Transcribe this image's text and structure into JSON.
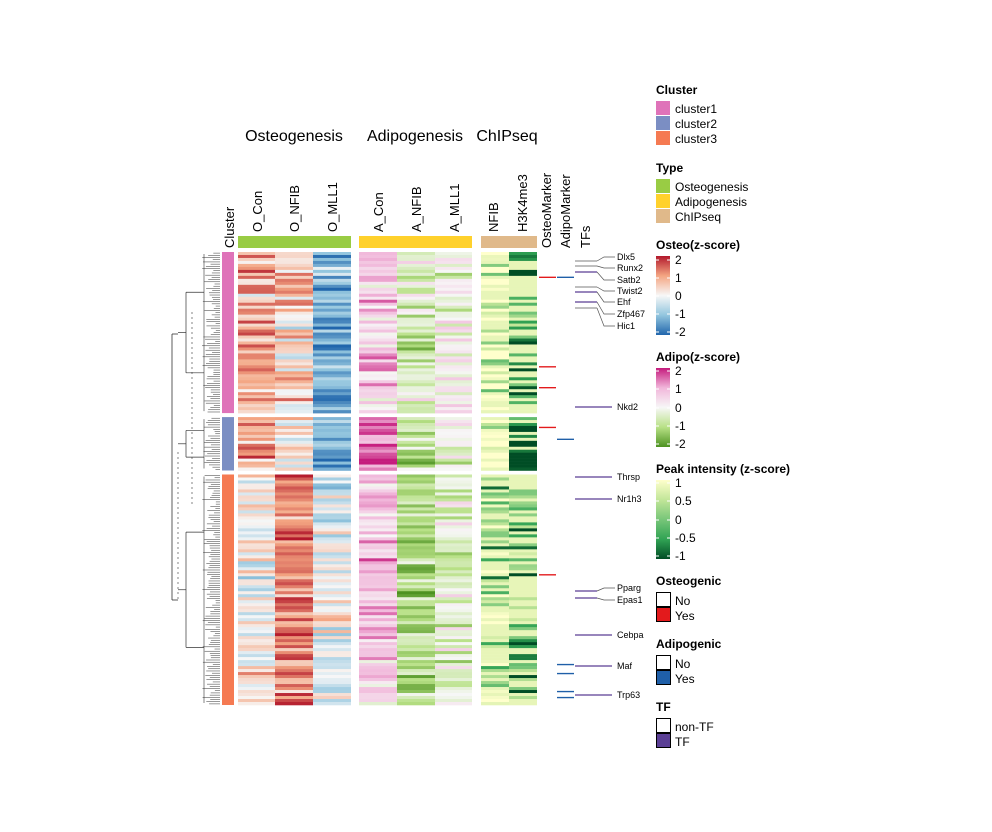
{
  "chart_data": {
    "type": "heatmap",
    "column_groups": [
      {
        "name": "Osteogenesis",
        "columns": [
          "O_Con",
          "O_NFIB",
          "O_MLL1"
        ],
        "scale": "Osteo(z-score)"
      },
      {
        "name": "Adipogenesis",
        "columns": [
          "A_Con",
          "A_NFIB",
          "A_MLL1"
        ],
        "scale": "Adipo(z-score)"
      },
      {
        "name": "ChIPseq",
        "columns": [
          "NFIB",
          "H3K4me3"
        ],
        "scale": "Peak intensity (z-score)"
      }
    ],
    "annotation_columns": [
      "Cluster",
      "OsteoMarker",
      "AdipoMarker",
      "TFs"
    ],
    "clusters": [
      {
        "name": "cluster1",
        "color": "#df73b9",
        "row_fraction": 0.362
      },
      {
        "name": "cluster2",
        "color": "#7b8ec3",
        "row_fraction": 0.12
      },
      {
        "name": "cluster3",
        "color": "#f57a52",
        "row_fraction": 0.518
      }
    ],
    "mean_zscores": {
      "cluster1": {
        "O_Con": 0.9,
        "O_NFIB": 0.4,
        "O_MLL1": -1.3,
        "A_Con": 0.6,
        "A_NFIB": -0.5,
        "A_MLL1": -0.1,
        "NFIB": 0.8,
        "H3K4me3": -0.6
      },
      "cluster2": {
        "O_Con": 1.0,
        "O_NFIB": 0.2,
        "O_MLL1": -1.2,
        "A_Con": 1.2,
        "A_NFIB": -0.9,
        "A_MLL1": -0.3,
        "NFIB": 0.9,
        "H3K4me3": -1.0
      },
      "cluster3": {
        "O_Con": 0.1,
        "O_NFIB": 1.3,
        "O_MLL1": -0.3,
        "A_Con": 0.8,
        "A_NFIB": -1.0,
        "A_MLL1": -0.4,
        "NFIB": 0.3,
        "H3K4me3": -0.3
      }
    },
    "labeled_genes": [
      "Dlx5",
      "Runx2",
      "Satb2",
      "Twist2",
      "Ehf",
      "Zfp467",
      "Hic1",
      "Nkd2",
      "Thrsp",
      "Nr1h3",
      "Pparg",
      "Epas1",
      "Cebpa",
      "Maf",
      "Trp63"
    ],
    "legends": {
      "cluster": {
        "title": "Cluster",
        "items": [
          "cluster1",
          "cluster2",
          "cluster3"
        ]
      },
      "type": {
        "title": "Type",
        "items": [
          {
            "label": "Osteogenesis",
            "color": "#99cc44"
          },
          {
            "label": "Adipogenesis",
            "color": "#ffd12c"
          },
          {
            "label": "ChIPseq",
            "color": "#e0b98a"
          }
        ]
      },
      "osteo": {
        "title": "Osteo(z-score)",
        "ticks": [
          "2",
          "1",
          "0",
          "-1",
          "-2"
        ],
        "colors": [
          "#b2182b",
          "#f4a582",
          "#f7f7f7",
          "#92c5de",
          "#2166ac"
        ]
      },
      "adipo": {
        "title": "Adipo(z-score)",
        "ticks": [
          "2",
          "1",
          "0",
          "-1",
          "-2"
        ],
        "colors": [
          "#c51b7d",
          "#f1b6da",
          "#f7f7f7",
          "#b8e186",
          "#4d9221"
        ]
      },
      "peak": {
        "title": "Peak intensity (z-score)",
        "ticks": [
          "1",
          "0.5",
          "0",
          "-0.5",
          "-1"
        ],
        "colors": [
          "#ffffcc",
          "#c2e699",
          "#78c679",
          "#31a354",
          "#004d25"
        ]
      },
      "osteogenic": {
        "title": "Osteogenic",
        "items": [
          {
            "label": "No",
            "color": "#ffffff"
          },
          {
            "label": "Yes",
            "color": "#e31a1c"
          }
        ]
      },
      "adipogenic": {
        "title": "Adipogenic",
        "items": [
          {
            "label": "No",
            "color": "#ffffff"
          },
          {
            "label": "Yes",
            "color": "#1f5fa8"
          }
        ]
      },
      "tf": {
        "title": "TF",
        "items": [
          {
            "label": "non-TF",
            "color": "#ffffff"
          },
          {
            "label": "TF",
            "color": "#5b3f95"
          }
        ]
      }
    }
  }
}
